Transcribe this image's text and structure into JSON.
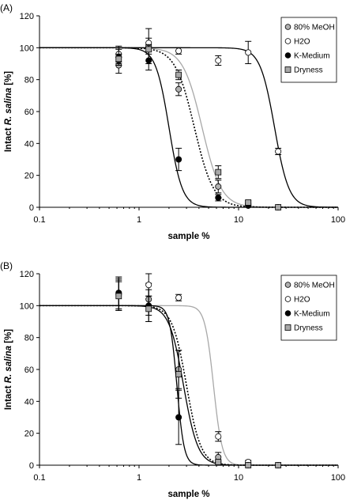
{
  "chart_data": [
    {
      "type": "scatter",
      "panel_label": "(A)",
      "xlabel": "sample %",
      "ylabel_prefix": "Intact ",
      "ylabel_italic": "R. salina",
      "ylabel_suffix": " [%]",
      "xscale": "log",
      "xlim": [
        0.1,
        100
      ],
      "ylim": [
        0,
        120
      ],
      "xticks": [
        "0.1",
        "1",
        "10",
        "100"
      ],
      "yticks": [
        "0",
        "20",
        "40",
        "60",
        "80",
        "100",
        "120"
      ],
      "legend_position": "top-right",
      "series": [
        {
          "name": "80% MeOH",
          "marker": "circle",
          "marker_fill": "#b0b0b0",
          "fit_style": "solid",
          "fit_color": "#a8a8a8",
          "fit": {
            "top": 100,
            "ec50": 4.3,
            "slope": 4.5
          },
          "points": [
            {
              "x": 0.625,
              "y": 89,
              "err": 5
            },
            {
              "x": 1.25,
              "y": 101,
              "err": 11
            },
            {
              "x": 2.5,
              "y": 74,
              "err": 4
            },
            {
              "x": 6.25,
              "y": 13,
              "err": 4
            },
            {
              "x": 12.5,
              "y": 2,
              "err": 1
            },
            {
              "x": 25,
              "y": 0,
              "err": 0
            }
          ]
        },
        {
          "name": "H2O",
          "marker": "circle",
          "marker_fill": "#ffffff",
          "fit_style": "solid",
          "fit_color": "#000000",
          "fit": {
            "top": 100,
            "ec50": 23,
            "slope": 6
          },
          "points": [
            {
              "x": 0.625,
              "y": 96,
              "err": 5
            },
            {
              "x": 1.25,
              "y": 103,
              "err": 3
            },
            {
              "x": 2.5,
              "y": 98,
              "err": 2
            },
            {
              "x": 6.25,
              "y": 92,
              "err": 3
            },
            {
              "x": 12.5,
              "y": 97,
              "err": 7
            },
            {
              "x": 25,
              "y": 35,
              "err": 2
            }
          ]
        },
        {
          "name": "K-Medium",
          "marker": "circle",
          "marker_fill": "#000000",
          "fit_style": "solid",
          "fit_color": "#000000",
          "fit": {
            "top": 100,
            "ec50": 2.0,
            "slope": 6.5
          },
          "points": [
            {
              "x": 0.625,
              "y": 94,
              "err": 5
            },
            {
              "x": 1.25,
              "y": 92,
              "err": 6
            },
            {
              "x": 2.5,
              "y": 30,
              "err": 7
            },
            {
              "x": 6.25,
              "y": 6,
              "err": 2
            },
            {
              "x": 12.5,
              "y": 1,
              "err": 0
            },
            {
              "x": 25,
              "y": 0,
              "err": 0
            }
          ]
        },
        {
          "name": "Dryness",
          "marker": "square",
          "marker_fill": "#a8a8a8",
          "fit_style": "dotted",
          "fit_color": "#000000",
          "fit": {
            "top": 100,
            "ec50": 3.6,
            "slope": 4.5
          },
          "points": [
            {
              "x": 0.625,
              "y": 93,
              "err": 3
            },
            {
              "x": 1.25,
              "y": 99,
              "err": 3
            },
            {
              "x": 2.5,
              "y": 83,
              "err": 3
            },
            {
              "x": 6.25,
              "y": 22,
              "err": 4
            },
            {
              "x": 12.5,
              "y": 3,
              "err": 1
            },
            {
              "x": 25,
              "y": 0,
              "err": 0
            }
          ]
        }
      ]
    },
    {
      "type": "scatter",
      "panel_label": "(B)",
      "xlabel": "sample %",
      "ylabel_prefix": "Intact ",
      "ylabel_italic": "R. salina",
      "ylabel_suffix": " [%]",
      "xscale": "log",
      "xlim": [
        0.1,
        100
      ],
      "ylim": [
        0,
        120
      ],
      "xticks": [
        "0.1",
        "1",
        "10",
        "100"
      ],
      "yticks": [
        "0",
        "20",
        "40",
        "60",
        "80",
        "100",
        "120"
      ],
      "legend_position": "top-right",
      "series": [
        {
          "name": "80% MeOH",
          "marker": "circle",
          "marker_fill": "#b0b0b0",
          "fit_style": "solid",
          "fit_color": "#000000",
          "fit": {
            "top": 100,
            "ec50": 2.8,
            "slope": 6
          },
          "points": [
            {
              "x": 0.625,
              "y": 107,
              "err": 10
            },
            {
              "x": 1.25,
              "y": 104,
              "err": 10
            },
            {
              "x": 2.5,
              "y": 60,
              "err": 12
            },
            {
              "x": 6.25,
              "y": 5,
              "err": 3
            },
            {
              "x": 12.5,
              "y": 1,
              "err": 0
            },
            {
              "x": 25,
              "y": 0,
              "err": 0
            }
          ]
        },
        {
          "name": "H2O",
          "marker": "circle",
          "marker_fill": "#ffffff",
          "fit_style": "solid",
          "fit_color": "#a8a8a8",
          "fit": {
            "top": 100,
            "ec50": 5.6,
            "slope": 10
          },
          "points": [
            {
              "x": 0.625,
              "y": 108,
              "err": 10
            },
            {
              "x": 1.25,
              "y": 113,
              "err": 7
            },
            {
              "x": 2.5,
              "y": 105,
              "err": 2
            },
            {
              "x": 6.25,
              "y": 18,
              "err": 3
            },
            {
              "x": 12.5,
              "y": 2,
              "err": 1
            },
            {
              "x": 25,
              "y": 0,
              "err": 0
            }
          ]
        },
        {
          "name": "K-Medium",
          "marker": "circle",
          "marker_fill": "#000000",
          "fit_style": "solid",
          "fit_color": "#000000",
          "fit": {
            "top": 100,
            "ec50": 2.4,
            "slope": 12
          },
          "points": [
            {
              "x": 0.625,
              "y": 108,
              "err": 8
            },
            {
              "x": 1.25,
              "y": 100,
              "err": 10
            },
            {
              "x": 2.5,
              "y": 30,
              "err": 17
            },
            {
              "x": 6.25,
              "y": 2,
              "err": 1
            },
            {
              "x": 12.5,
              "y": 0,
              "err": 0
            },
            {
              "x": 25,
              "y": 0,
              "err": 0
            }
          ]
        },
        {
          "name": "Dryness",
          "marker": "square",
          "marker_fill": "#a8a8a8",
          "fit_style": "dotted",
          "fit_color": "#000000",
          "fit": {
            "top": 100,
            "ec50": 3.0,
            "slope": 6
          },
          "points": [
            {
              "x": 0.625,
              "y": 106,
              "err": 9
            },
            {
              "x": 1.25,
              "y": 98,
              "err": 8
            },
            {
              "x": 2.5,
              "y": 57,
              "err": 15
            },
            {
              "x": 6.25,
              "y": 2,
              "err": 1
            },
            {
              "x": 12.5,
              "y": 0,
              "err": 0
            },
            {
              "x": 25,
              "y": 0,
              "err": 0
            }
          ]
        }
      ]
    }
  ]
}
